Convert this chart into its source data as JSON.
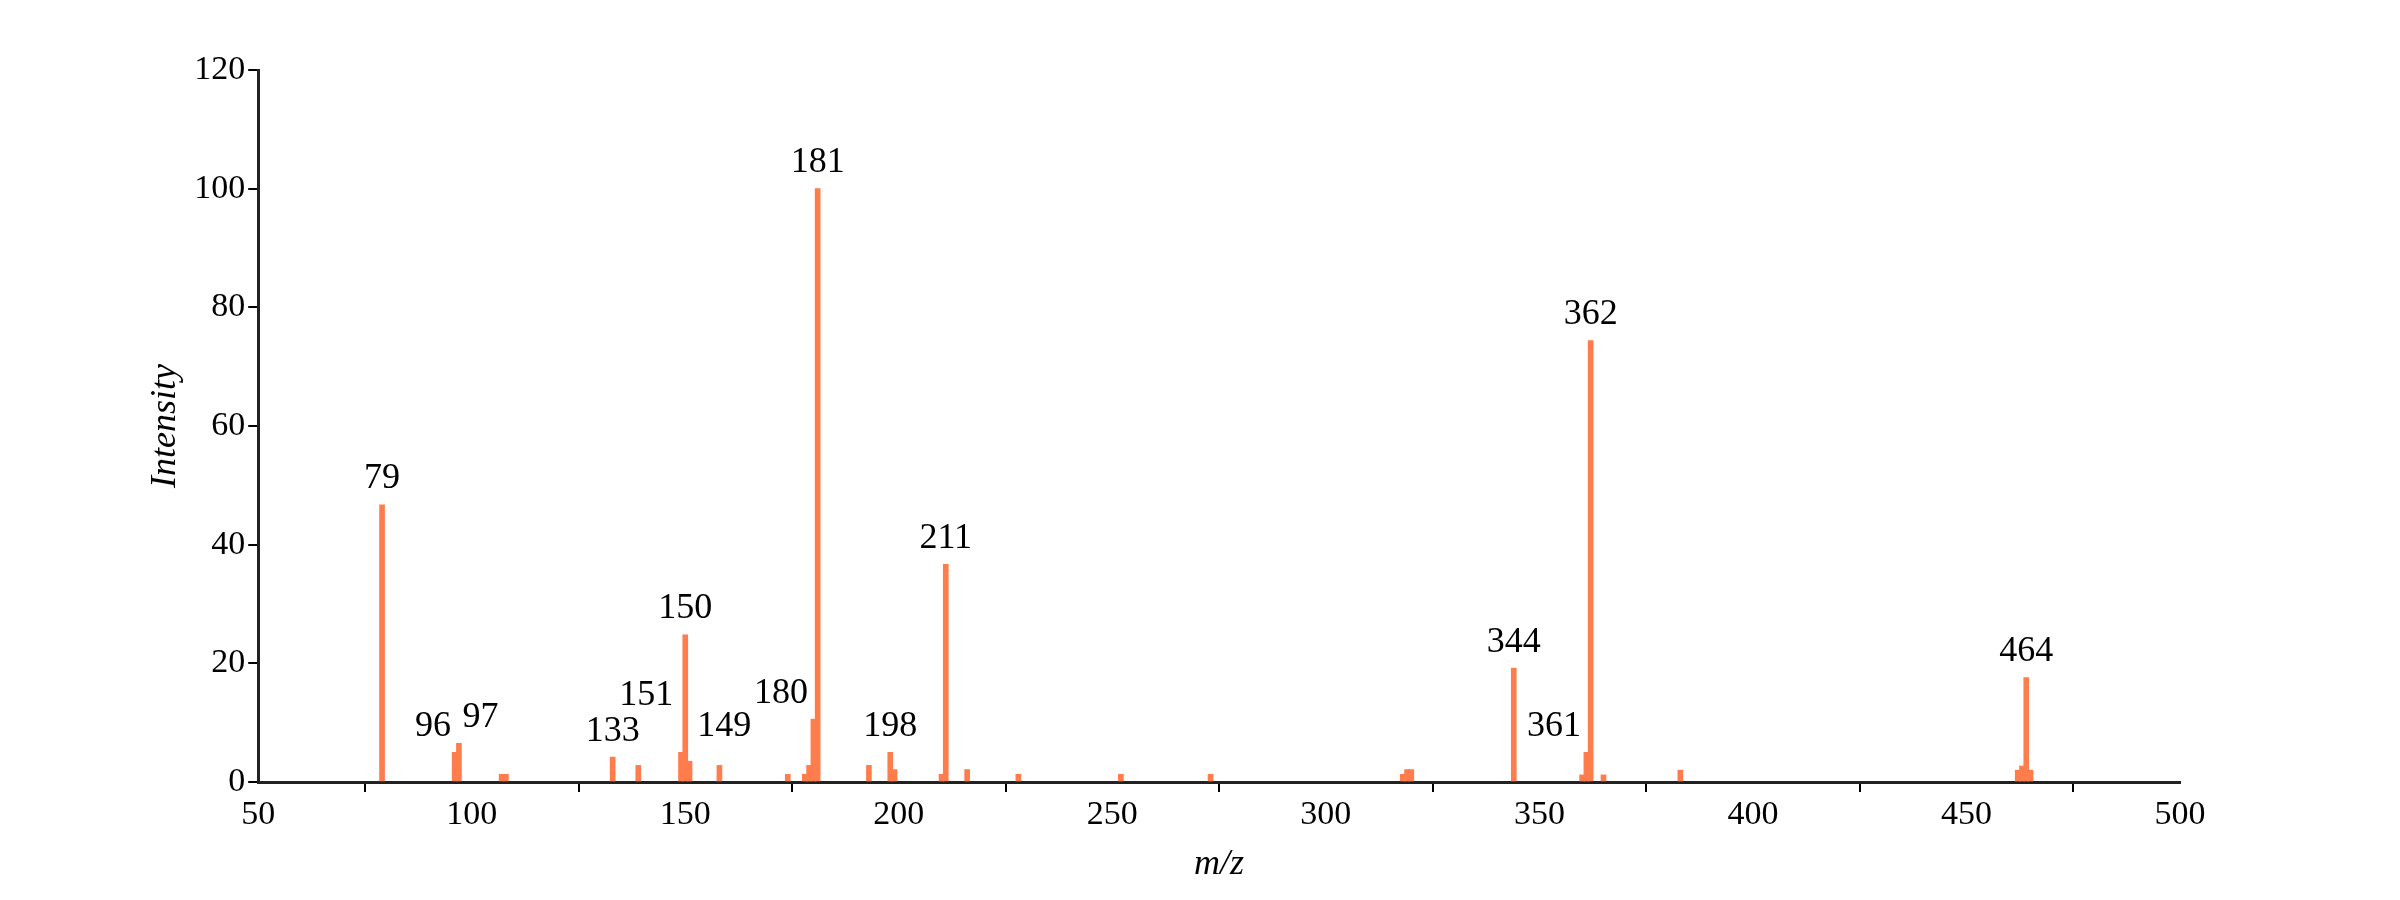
{
  "chart_data": {
    "type": "bar",
    "xlabel": "m/z",
    "ylabel": "Intensity",
    "x": [
      79,
      96,
      97,
      107,
      108,
      133,
      139,
      149,
      150,
      151,
      158,
      174,
      178,
      179,
      180,
      181,
      193,
      198,
      199,
      210,
      211,
      216,
      228,
      252,
      273,
      318,
      319,
      320,
      344,
      360,
      361,
      362,
      365,
      383,
      462,
      463,
      464,
      465
    ],
    "values": [
      46.7,
      5.0,
      6.5,
      1.3,
      1.3,
      4.2,
      2.8,
      5.0,
      24.8,
      3.5,
      2.8,
      1.3,
      1.3,
      2.8,
      10.6,
      100,
      2.8,
      5.0,
      2.1,
      1.3,
      36.7,
      2.1,
      1.3,
      1.3,
      1.3,
      1.3,
      2.1,
      2.1,
      19.2,
      1.2,
      5.0,
      74.4,
      1.2,
      2.0,
      2.0,
      2.7,
      17.6,
      2.0
    ],
    "color": "#ff7d4d",
    "xlim": [
      50,
      500
    ],
    "xticks": [
      50,
      100,
      150,
      200,
      250,
      300,
      350,
      400,
      450,
      500
    ],
    "ylim": [
      0,
      120
    ],
    "yticks": [
      0,
      20,
      40,
      60,
      80,
      100,
      120
    ],
    "grid": false,
    "legend": false,
    "annotations": [
      {
        "text": "79",
        "x": 79,
        "y": 46.7
      },
      {
        "text": "96",
        "x": 96,
        "y": 5.0
      },
      {
        "text": "97",
        "x": 97,
        "y": 6.5
      },
      {
        "text": "133",
        "x": 133,
        "y": 4.2
      },
      {
        "text": "149",
        "x": 149,
        "y": 5.0
      },
      {
        "text": "150",
        "x": 150,
        "y": 24.8
      },
      {
        "text": "151",
        "x": 151,
        "y": 3.5
      },
      {
        "text": "180",
        "x": 180,
        "y": 10.6
      },
      {
        "text": "181",
        "x": 181,
        "y": 100
      },
      {
        "text": "198",
        "x": 198,
        "y": 5.0
      },
      {
        "text": "211",
        "x": 211,
        "y": 36.7
      },
      {
        "text": "344",
        "x": 344,
        "y": 19.2
      },
      {
        "text": "361",
        "x": 361,
        "y": 5.0
      },
      {
        "text": "362",
        "x": 362,
        "y": 74.4
      },
      {
        "text": "464",
        "x": 464,
        "y": 17.6
      }
    ]
  }
}
